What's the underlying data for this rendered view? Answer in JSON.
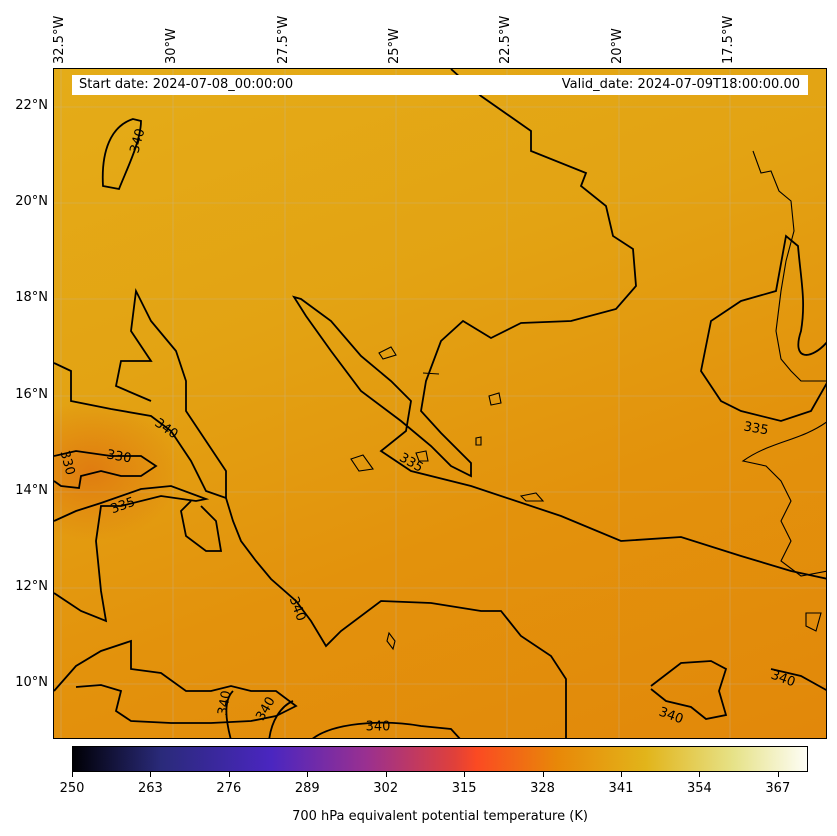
{
  "header": {
    "start": "Start date: 2024-07-08_00:00:00",
    "valid": "Valid_date: 2024-07-09T18:00:00.00"
  },
  "lon_labels": [
    "32.5°W",
    "30°W",
    "27.5°W",
    "25°W",
    "22.5°W",
    "20°W",
    "17.5°W"
  ],
  "lat_labels": [
    "22°N",
    "20°N",
    "18°N",
    "16°N",
    "14°N",
    "12°N",
    "10°N"
  ],
  "contour_labels": [
    "340",
    "340",
    "330",
    "330",
    "335",
    "335",
    "340",
    "340",
    "340",
    "340",
    "340",
    "340",
    "335"
  ],
  "colorbar": {
    "ticks": [
      "250",
      "263",
      "276",
      "289",
      "302",
      "315",
      "328",
      "341",
      "354",
      "367"
    ],
    "label": "700 hPa equivalent potential temperature (K)",
    "range": [
      250,
      372
    ]
  },
  "colors": {
    "contour": "#000000"
  }
}
